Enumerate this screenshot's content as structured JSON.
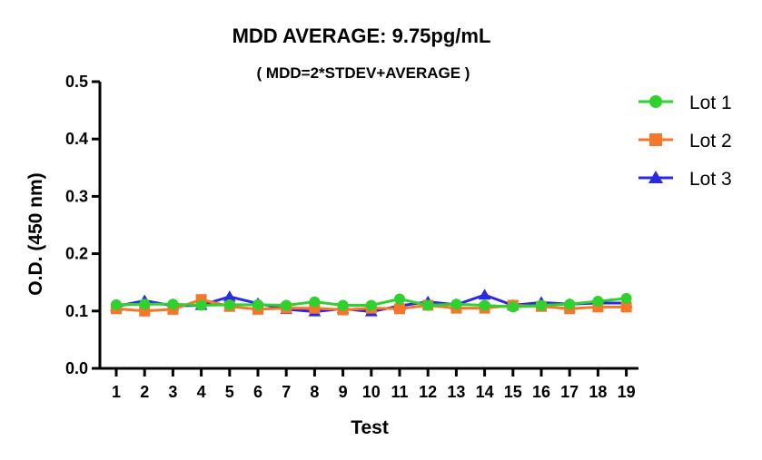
{
  "chart_data": {
    "type": "line",
    "title": "MDD AVERAGE:  9.75pg/mL",
    "subtitle": "( MDD=2*STDEV+AVERAGE )",
    "xlabel": "Test",
    "ylabel": "O.D. (450 nm)",
    "x": [
      1,
      2,
      3,
      4,
      5,
      6,
      7,
      8,
      9,
      10,
      11,
      12,
      13,
      14,
      15,
      16,
      17,
      18,
      19
    ],
    "ylim": [
      0,
      0.5
    ],
    "yticks": [
      "0.0",
      "0.1",
      "0.2",
      "0.3",
      "0.4",
      "0.5"
    ],
    "ytick_values": [
      0,
      0.1,
      0.2,
      0.3,
      0.4,
      0.5
    ],
    "legend_position": "top-right",
    "grid": false,
    "series": [
      {
        "name": "Lot 1",
        "color": "#2ed12e",
        "marker": "circle",
        "values": [
          0.111,
          0.112,
          0.112,
          0.11,
          0.111,
          0.111,
          0.11,
          0.116,
          0.11,
          0.11,
          0.121,
          0.11,
          0.112,
          0.11,
          0.107,
          0.11,
          0.112,
          0.117,
          0.122
        ]
      },
      {
        "name": "Lot 2",
        "color": "#f5782a",
        "marker": "square",
        "values": [
          0.104,
          0.1,
          0.103,
          0.12,
          0.108,
          0.103,
          0.105,
          0.105,
          0.102,
          0.105,
          0.104,
          0.11,
          0.105,
          0.105,
          0.11,
          0.108,
          0.104,
          0.107,
          0.107
        ]
      },
      {
        "name": "Lot 3",
        "color": "#2a2ae0",
        "marker": "triangle",
        "values": [
          0.108,
          0.118,
          0.109,
          0.11,
          0.125,
          0.113,
          0.103,
          0.099,
          0.104,
          0.099,
          0.109,
          0.116,
          0.111,
          0.128,
          0.11,
          0.115,
          0.112,
          0.114,
          0.114
        ]
      }
    ]
  }
}
